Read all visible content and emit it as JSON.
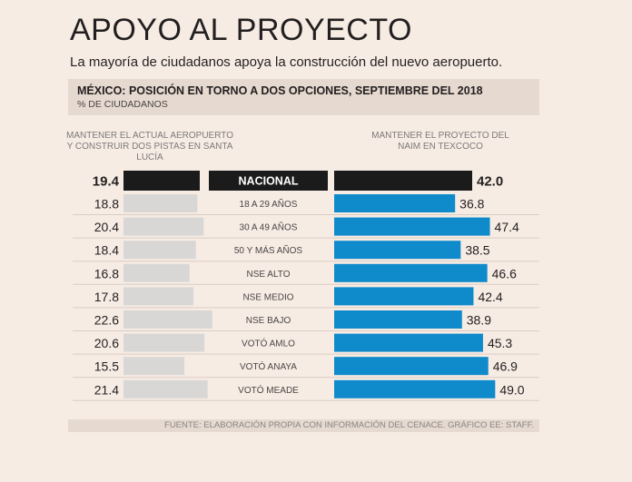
{
  "chart_data": {
    "type": "bar",
    "title": "APOYO AL PROYECTO",
    "subtitle": "La mayoría de ciudadanos apoya la construcción del nuevo aeropuerto.",
    "panel_title": "MÉXICO: POSICIÓN EN TORNO A DOS OPCIONES, SEPTIEMBRE DEL 2018",
    "unit": "% DE CIUDADANOS",
    "categories": [
      "NACIONAL",
      "18 A 29 AÑOS",
      "30 A 49 AÑOS",
      "50 Y MÁS AÑOS",
      "NSE ALTO",
      "NSE MEDIO",
      "NSE BAJO",
      "VOTÓ AMLO",
      "VOTÓ ANAYA",
      "VOTÓ MEADE"
    ],
    "series": [
      {
        "name": "MANTENER EL ACTUAL AEROPUERTO Y CONSTRUIR DOS PISTAS EN SANTA LUCÍA",
        "values": [
          19.4,
          18.8,
          20.4,
          18.4,
          16.8,
          17.8,
          22.6,
          20.6,
          15.5,
          21.4
        ],
        "labels": [
          "19.4",
          "18.8",
          "20.4",
          "18.4",
          "16.8",
          "17.8",
          "22.6",
          "20.6",
          "15.5",
          "21.4"
        ]
      },
      {
        "name": "MANTENER EL PROYECTO DEL NAIM EN TEXCOCO",
        "values": [
          42.0,
          36.8,
          47.4,
          38.5,
          46.6,
          42.4,
          38.9,
          45.3,
          46.9,
          49.0
        ],
        "labels": [
          "42.0",
          "36.8",
          "47.4",
          "38.5",
          "46.6",
          "42.4",
          "38.9",
          "45.3",
          "46.9",
          "49.0"
        ]
      }
    ],
    "colors": {
      "national": "#1c1b1b",
      "left_series": "#d9d7d6",
      "right_series": "#0f8acb",
      "separator": "#d8ccc3"
    },
    "source": "FUENTE: ELABORACIÓN PROPIA CON INFORMACIÓN DEL CENACE. GRÁFICO EE: STAFF."
  }
}
